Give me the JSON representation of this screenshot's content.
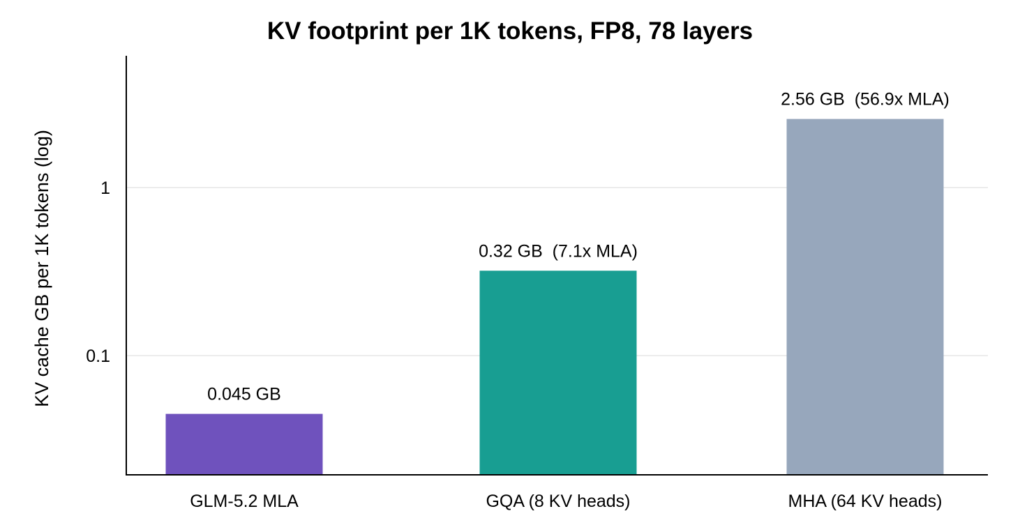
{
  "chart_data": {
    "type": "bar",
    "title": "KV footprint per 1K tokens, FP8, 78 layers",
    "xlabel": "",
    "ylabel": "KV cache GB per 1K tokens (log)",
    "y_scale": "log",
    "ylim": [
      0.02,
      5.0
    ],
    "y_ticks": [
      {
        "value": 0.1,
        "label": "0.1"
      },
      {
        "value": 1,
        "label": "1"
      }
    ],
    "grid": "horizontal",
    "legend": "none",
    "categories": [
      "GLM-5.2 MLA",
      "GQA (8 KV heads)",
      "MHA (64 KV heads)"
    ],
    "values": [
      0.045,
      0.32,
      2.56
    ],
    "data_labels": [
      "0.045 GB",
      "0.32 GB  (7.1x MLA)",
      "2.56 GB  (56.9x MLA)"
    ],
    "colors": [
      "#6f52bd",
      "#189e92",
      "#97a7bc"
    ]
  }
}
